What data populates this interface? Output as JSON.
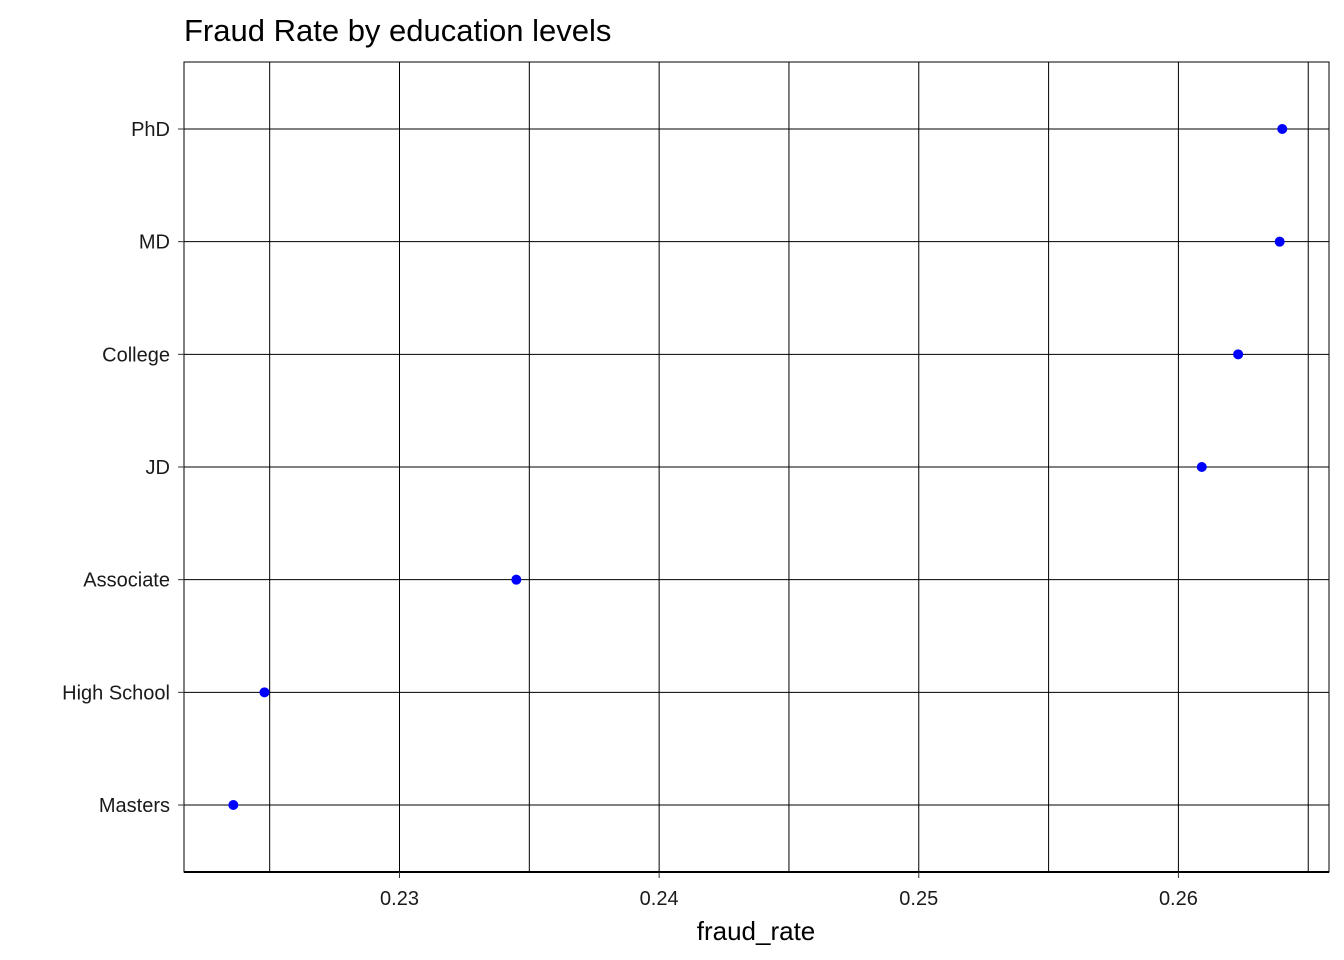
{
  "chart_data": {
    "type": "scatter",
    "title": "Fraud Rate by education levels",
    "xlabel": "fraud_rate",
    "ylabel": "",
    "categories": [
      "Masters",
      "High School",
      "Associate",
      "JD",
      "College",
      "MD",
      "PhD"
    ],
    "series": [
      {
        "values": [
          0.2236,
          0.2248,
          0.2345,
          0.2609,
          0.2623,
          0.2639,
          0.264
        ]
      }
    ],
    "x_ticks": [
      0.23,
      0.24,
      0.25,
      0.26
    ],
    "x_tick_labels": [
      "0.23",
      "0.24",
      "0.25",
      "0.26"
    ],
    "xlim": [
      0.2217,
      0.2658
    ],
    "grid": true,
    "legend": "none",
    "point_color": "#0000ff",
    "grid_color": "#000000"
  }
}
